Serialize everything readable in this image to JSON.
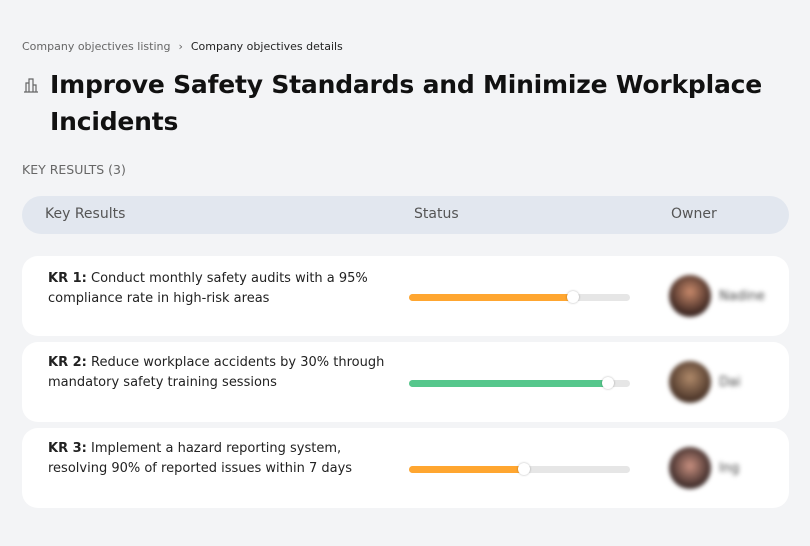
{
  "breadcrumb": {
    "items": [
      "Company objectives listing",
      "Company objectives details"
    ],
    "separator": "›"
  },
  "title": "Improve Safety Standards and Minimize Workplace Incidents",
  "title_icon": "buildings-icon",
  "key_results_label": "KEY RESULTS (3)",
  "table_header": {
    "key_results": "Key Results",
    "status": "Status",
    "owner": "Owner"
  },
  "colors": {
    "orange": "#ffa630",
    "green": "#56c78c"
  },
  "rows": [
    {
      "kr": "KR 1:",
      "text": "Conduct monthly safety audits with a 95% compliance rate in high-risk areas",
      "progress": 74,
      "color": "#ffa630",
      "owner": "Nadine"
    },
    {
      "kr": "KR 2:",
      "text": "Reduce workplace accidents by 30% through mandatory safety training sessions",
      "progress": 90,
      "color": "#56c78c",
      "owner": "Dai"
    },
    {
      "kr": "KR 3:",
      "text": "Implement a hazard reporting system, resolving 90% of reported issues within 7 days",
      "progress": 52,
      "color": "#ffa630",
      "owner": "Ing"
    }
  ]
}
